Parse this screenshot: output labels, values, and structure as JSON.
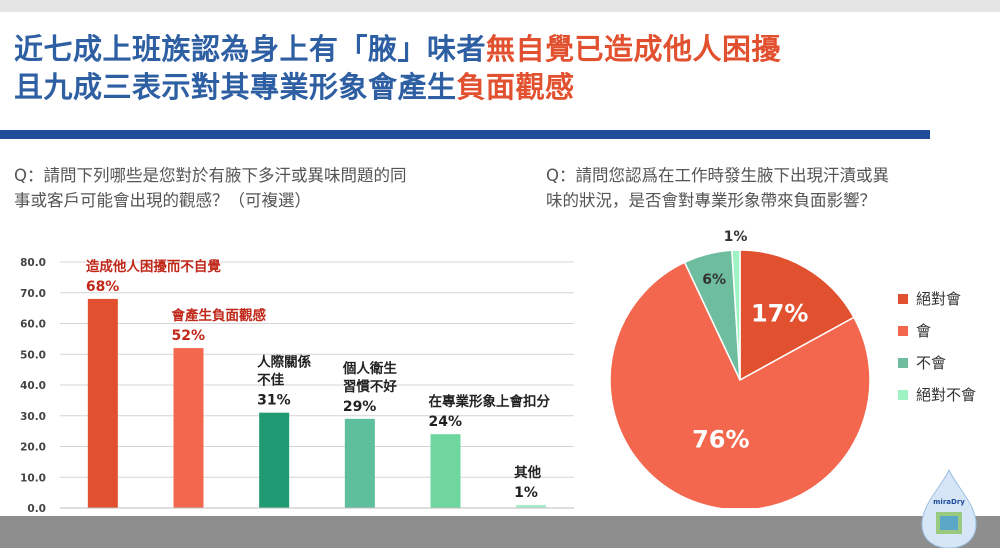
{
  "title": {
    "line1_blue": "近七成上班族認為身上有「腋」味者",
    "line1_red": "無自覺已造成他人困擾",
    "line2_blue": "且九成三表示對其專業形象會產生",
    "line2_red": "負面觀感"
  },
  "questions": {
    "left_line1": "Q：請問下列哪些是您對於有腋下多汗或異味問題的同",
    "left_line2": "事或客戶可能會出現的觀感？（可複選）",
    "right_line1": "Q：請問您認爲在工作時發生腋下出現汗漬或異",
    "right_line2": "味的狀況，是否會對專業形象帶來負面影響？"
  },
  "logo_text": "miraDry",
  "chart_data": [
    {
      "type": "bar",
      "title": "",
      "xlabel": "",
      "ylabel": "",
      "ylim": [
        0,
        80
      ],
      "yticks": [
        "0.0",
        "10.0",
        "20.0",
        "30.0",
        "40.0",
        "50.0",
        "60.0",
        "70.0",
        "80.0"
      ],
      "grid": true,
      "categories": [
        [
          "造成他人困擾而不自覺"
        ],
        [
          "會產生負面觀感"
        ],
        [
          "人際關係",
          "不佳"
        ],
        [
          "個人衛生",
          "習慣不好"
        ],
        [
          "在專業形象上會扣分"
        ],
        [
          "其他"
        ]
      ],
      "values": [
        68,
        52,
        31,
        29,
        24,
        1
      ],
      "value_labels": [
        "68%",
        "52%",
        "31%",
        "29%",
        "24%",
        "1%"
      ],
      "colors": [
        "#e2512f",
        "#f2674d",
        "#1f9a73",
        "#5dbf9c",
        "#6fd6a0",
        "#a8ecc8"
      ],
      "label_colors": [
        "#c0281a",
        "#c0281a",
        "#222222",
        "#222222",
        "#222222",
        "#222222"
      ]
    },
    {
      "type": "pie",
      "title": "",
      "legend_position": "right",
      "labels": [
        "絕對會",
        "會",
        "不會",
        "絕對不會"
      ],
      "values": [
        17,
        76,
        6,
        1
      ],
      "value_labels": [
        "17%",
        "76%",
        "6%",
        "1%"
      ],
      "colors": [
        "#e2512f",
        "#f2674d",
        "#6dbd9e",
        "#9ff2c4"
      ]
    }
  ]
}
